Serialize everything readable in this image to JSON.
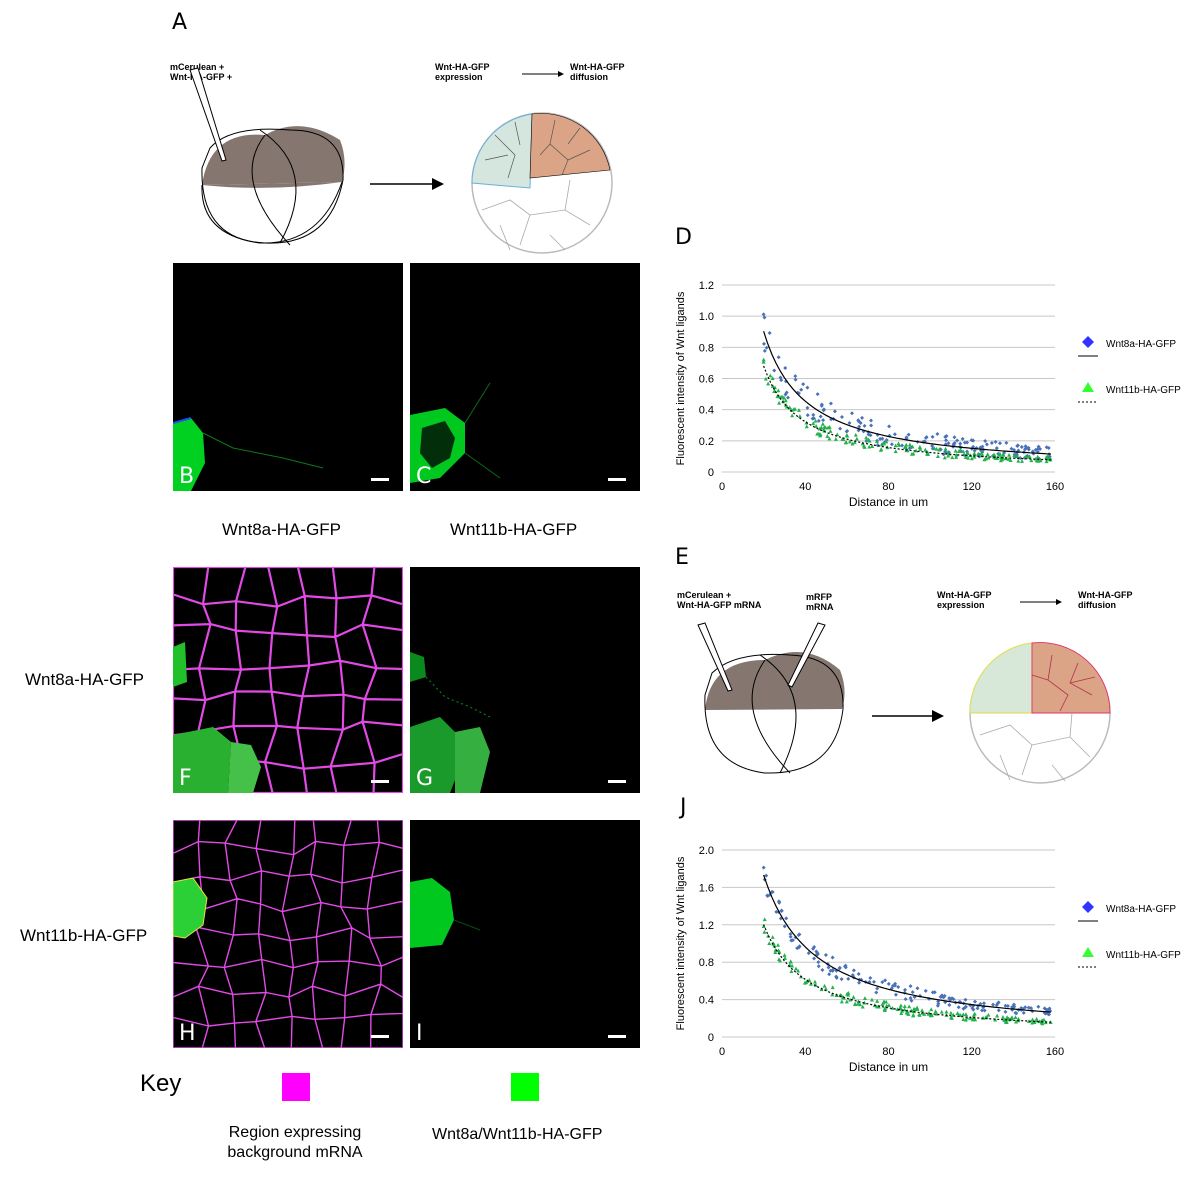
{
  "panel_letters": {
    "A": "A",
    "D": "D",
    "E": "E",
    "J": "J"
  },
  "schematic_A": {
    "injection_label_1": "mCerulean +",
    "injection_label_2": "Wnt-HA-GFP +",
    "expression_label_1": "Wnt-HA-GFP",
    "expression_label_2": "expression",
    "diffusion_label_1": "Wnt-HA-GFP",
    "diffusion_label_2": "diffusion"
  },
  "schematic_E": {
    "injection_label_1": "mCerulean +",
    "injection_label_2": "Wnt-HA-GFP mRNA",
    "mrfp_label_1": "mRFP",
    "mrfp_label_2": "mRNA",
    "expression_label_1": "Wnt-HA-GFP",
    "expression_label_2": "expression",
    "diffusion_label_1": "Wnt-HA-GFP",
    "diffusion_label_2": "diffusion"
  },
  "micro_panels": {
    "B": "B",
    "C": "C",
    "F": "F",
    "G": "G",
    "H": "H",
    "I": "I"
  },
  "column_labels": {
    "left": "Wnt8a-HA-GFP",
    "right": "Wnt11b-HA-GFP"
  },
  "row_labels": {
    "top": "Wnt8a-HA-GFP",
    "bottom": "Wnt11b-HA-GFP"
  },
  "key": {
    "title": "Key",
    "magenta_label_1": "Region expressing",
    "magenta_label_2": "background mRNA",
    "green_label": "Wnt8a/Wnt11b-HA-GFP",
    "magenta_color": "#ff00ff",
    "green_color": "#00ff00"
  },
  "colors": {
    "wnt8a": "#4a72b8",
    "wnt11b": "#22b14c",
    "legend_blue": "#3333ff",
    "legend_green": "#33ff33"
  },
  "chart_data": [
    {
      "id": "D",
      "type": "scatter",
      "ylabel": "Fluorescent intensity of Wnt ligands",
      "xlabel": "Distance in um",
      "xlim": [
        0,
        160
      ],
      "ylim": [
        0,
        1.2
      ],
      "xticks": [
        0,
        40,
        80,
        120,
        160
      ],
      "yticks": [
        "0",
        "0.2",
        "0.4",
        "0.6",
        "0.8",
        "1.0",
        "1.2"
      ],
      "series": [
        {
          "name": "Wnt8a-HA-GFP",
          "marker": "diamond",
          "fit": "solid",
          "fit_a": 20.5,
          "peak": 1.05,
          "noise": 0.18,
          "seed": 7
        },
        {
          "name": "Wnt11b-HA-GFP",
          "marker": "triangle",
          "fit": "dotted",
          "fit_a": 16.0,
          "peak": 0.9,
          "noise": 0.08,
          "seed": 13
        }
      ]
    },
    {
      "id": "J",
      "type": "scatter",
      "ylabel": "Fluorescent intensity of Wnt ligands",
      "xlabel": "Distance in um",
      "xlim": [
        0,
        160
      ],
      "ylim": [
        0,
        2.0
      ],
      "xticks": [
        0,
        40,
        80,
        120,
        160
      ],
      "yticks": [
        "0",
        "0.4",
        "0.8",
        "1.2",
        "1.6",
        "2.0"
      ],
      "series": [
        {
          "name": "Wnt8a-HA-GFP",
          "marker": "diamond",
          "fit": "solid",
          "fit_a": 30.0,
          "peak": 1.7,
          "noise": 0.2,
          "seed": 21
        },
        {
          "name": "Wnt11b-HA-GFP",
          "marker": "triangle",
          "fit": "dotted",
          "fit_a": 22.0,
          "peak": 1.35,
          "noise": 0.12,
          "seed": 33
        }
      ]
    }
  ]
}
